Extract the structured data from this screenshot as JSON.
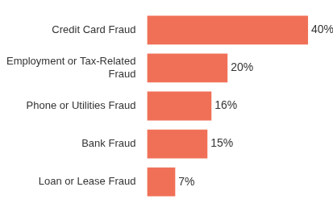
{
  "chart_data": {
    "type": "bar",
    "orientation": "horizontal",
    "categories": [
      "Credit Card Fraud",
      "Employment or Tax-Related Fraud",
      "Phone or Utilities Fraud",
      "Bank Fraud",
      "Loan or Lease Fraud"
    ],
    "values": [
      40,
      20,
      16,
      15,
      7
    ],
    "value_labels": [
      "40%",
      "20%",
      "16%",
      "15%",
      "7%"
    ],
    "color": "#f07057",
    "xlim": [
      0,
      45
    ],
    "data_labels": true,
    "tick_labels": "y",
    "grid": false
  }
}
